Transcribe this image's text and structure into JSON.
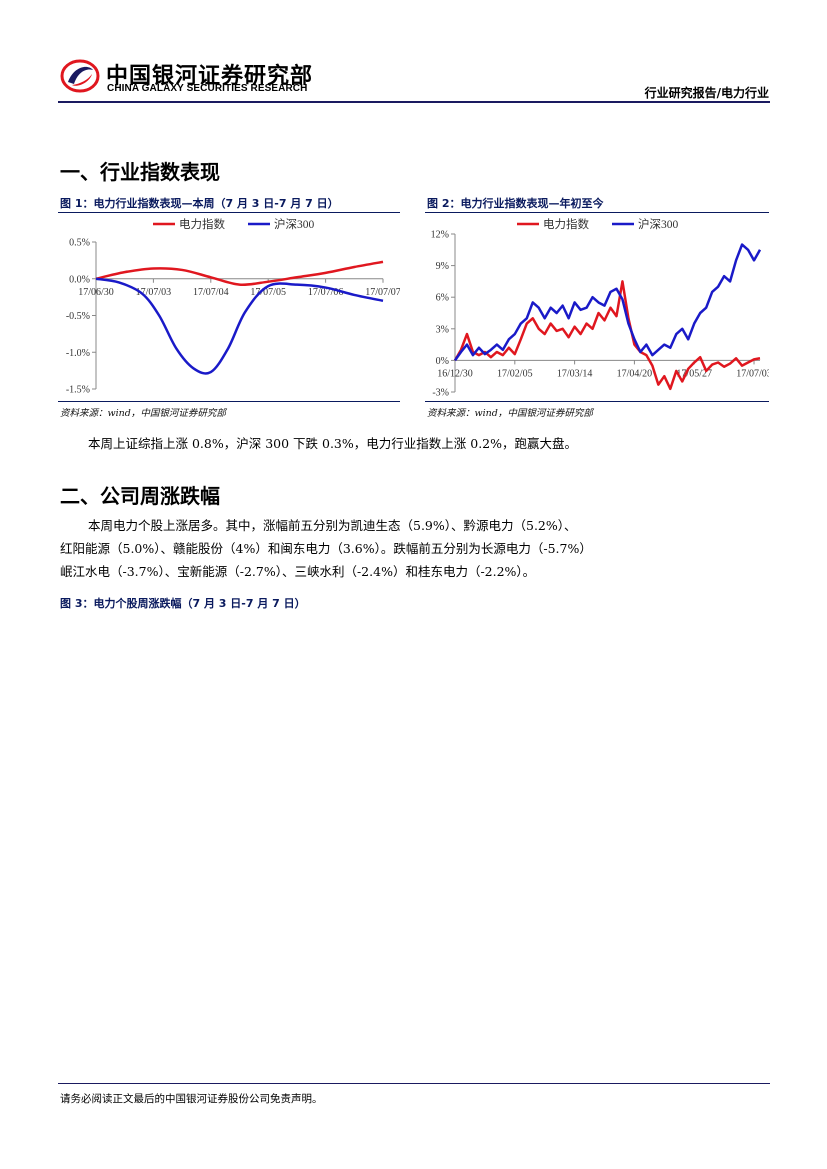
{
  "header": {
    "logo_cn": "中国银河证券研究部",
    "logo_en": "CHINA GALAXY SECURITIES RESEARCH",
    "report_type": "行业研究报告/电力行业",
    "brand_red": "#e0171f",
    "brand_navy": "#1a1a60"
  },
  "section1": {
    "title": "一、行业指数表现"
  },
  "fig1": {
    "title": "图 1：电力行业指数表现—本周（7 月 3 日-7 月 7 日）",
    "source": "资料来源：wind，中国银河证券研究部"
  },
  "fig2": {
    "title": "图 2：电力行业指数表现—年初至今",
    "source": "资料来源：wind，中国银河证券研究部"
  },
  "chart_data": [
    {
      "type": "line",
      "title": "",
      "legend_position": "top",
      "grid": false,
      "y_ticks": [
        "0.5%",
        "0.0%",
        "-0.5%",
        "-1.0%",
        "-1.5%"
      ],
      "y_tick_values": [
        0.5,
        0.0,
        -0.5,
        -1.0,
        -1.5
      ],
      "ylim": [
        -1.5,
        0.5
      ],
      "x_tick_labels": [
        "17/06/30",
        "17/07/03",
        "17/07/04",
        "17/07/05",
        "17/07/06",
        "17/07/07"
      ],
      "x_tick_positions": [
        0,
        1,
        2,
        3,
        4,
        5
      ],
      "xlim": [
        0,
        5
      ],
      "series": [
        {
          "name": "电力指数",
          "color": "#e0171f",
          "x": [
            0,
            0.5,
            1,
            1.5,
            2,
            2.5,
            3,
            3.5,
            4,
            4.5,
            5
          ],
          "y": [
            0.0,
            0.09,
            0.14,
            0.12,
            0.02,
            -0.08,
            -0.04,
            0.02,
            0.08,
            0.16,
            0.23
          ]
        },
        {
          "name": "沪深300",
          "color": "#1a1ac8",
          "x": [
            0,
            0.4,
            0.8,
            1.1,
            1.4,
            1.7,
            2.0,
            2.3,
            2.6,
            3.0,
            3.5,
            4.0,
            4.5,
            5.0
          ],
          "y": [
            0.0,
            -0.05,
            -0.2,
            -0.5,
            -0.95,
            -1.22,
            -1.27,
            -0.95,
            -0.45,
            -0.1,
            -0.08,
            -0.12,
            -0.22,
            -0.3
          ]
        }
      ]
    },
    {
      "type": "line",
      "title": "",
      "legend_position": "top",
      "grid": false,
      "y_ticks": [
        "12%",
        "9%",
        "6%",
        "3%",
        "0%",
        "-3%"
      ],
      "y_tick_values": [
        12,
        9,
        6,
        3,
        0,
        -3
      ],
      "ylim": [
        -3,
        12
      ],
      "x_tick_labels": [
        "16/12/30",
        "17/02/05",
        "17/03/14",
        "17/04/20",
        "17/05/27",
        "17/07/03"
      ],
      "x_tick_positions": [
        0,
        1,
        2,
        3,
        4,
        5
      ],
      "xlim": [
        0,
        5.1
      ],
      "series": [
        {
          "name": "电力指数",
          "color": "#e0171f",
          "x": [
            0,
            0.1,
            0.2,
            0.3,
            0.4,
            0.5,
            0.6,
            0.7,
            0.8,
            0.9,
            1.0,
            1.1,
            1.2,
            1.3,
            1.4,
            1.5,
            1.6,
            1.7,
            1.8,
            1.9,
            2.0,
            2.1,
            2.2,
            2.3,
            2.4,
            2.5,
            2.6,
            2.7,
            2.8,
            2.9,
            3.0,
            3.1,
            3.2,
            3.3,
            3.4,
            3.5,
            3.6,
            3.7,
            3.8,
            3.9,
            4.0,
            4.1,
            4.2,
            4.3,
            4.4,
            4.5,
            4.6,
            4.7,
            4.8,
            4.9,
            5.0,
            5.1
          ],
          "y": [
            0,
            1.0,
            2.5,
            0.8,
            0.5,
            0.8,
            0.3,
            0.8,
            0.5,
            1.2,
            0.6,
            2.0,
            3.5,
            4.0,
            3.0,
            2.5,
            3.5,
            2.8,
            3.0,
            2.2,
            3.2,
            2.5,
            3.5,
            3.0,
            4.5,
            3.8,
            5.0,
            4.2,
            7.5,
            4.0,
            1.5,
            0.8,
            0.5,
            -0.5,
            -2.3,
            -1.5,
            -2.7,
            -1.0,
            -2.0,
            -0.8,
            -0.2,
            0.3,
            -1.0,
            -0.4,
            -0.2,
            -0.6,
            -0.3,
            0.2,
            -0.5,
            -0.2,
            0.1,
            0.2
          ]
        },
        {
          "name": "沪深300",
          "color": "#1a1ac8",
          "x": [
            0,
            0.1,
            0.2,
            0.3,
            0.4,
            0.5,
            0.6,
            0.7,
            0.8,
            0.9,
            1.0,
            1.1,
            1.2,
            1.3,
            1.4,
            1.5,
            1.6,
            1.7,
            1.8,
            1.9,
            2.0,
            2.1,
            2.2,
            2.3,
            2.4,
            2.5,
            2.6,
            2.7,
            2.8,
            2.9,
            3.0,
            3.1,
            3.2,
            3.3,
            3.4,
            3.5,
            3.6,
            3.7,
            3.8,
            3.9,
            4.0,
            4.1,
            4.2,
            4.3,
            4.4,
            4.5,
            4.6,
            4.7,
            4.8,
            4.9,
            5.0,
            5.1
          ],
          "y": [
            0,
            0.8,
            1.5,
            0.5,
            1.2,
            0.6,
            1.0,
            1.5,
            1.0,
            2.0,
            2.5,
            3.5,
            4.0,
            5.5,
            5.0,
            4.0,
            5.0,
            4.5,
            5.2,
            4.0,
            5.5,
            4.8,
            5.0,
            6.0,
            5.5,
            5.2,
            6.5,
            6.8,
            5.8,
            3.5,
            2.0,
            0.8,
            1.5,
            0.5,
            1.0,
            1.5,
            1.2,
            2.5,
            3.0,
            2.0,
            3.5,
            4.5,
            5.0,
            6.5,
            7.0,
            8.0,
            7.5,
            9.5,
            11.0,
            10.5,
            9.5,
            10.5
          ]
        }
      ]
    }
  ],
  "para1": "本周上证综指上涨 0.8%，沪深 300 下跌 0.3%，电力行业指数上涨 0.2%，跑赢大盘。",
  "section2": {
    "title": "二、公司周涨跌幅"
  },
  "para2": [
    "本周电力个股上涨居多。其中，涨幅前五分别为凯迪生态（5.9%）、黔源电力（5.2%）、",
    "红阳能源（5.0%）、赣能股份（4%）和闽东电力（3.6%）。跌幅前五分别为长源电力（-5.7%）",
    "岷江水电（-3.7%）、宝新能源（-2.7%）、三峡水利（-2.4%）和桂东电力（-2.2%）。"
  ],
  "fig3": {
    "title": "图 3：电力个股周涨跌幅（7 月 3 日-7 月 7 日）"
  },
  "footer": {
    "disclaimer": "请务必阅读正文最后的中国银河证券股份公司免责声明。"
  }
}
